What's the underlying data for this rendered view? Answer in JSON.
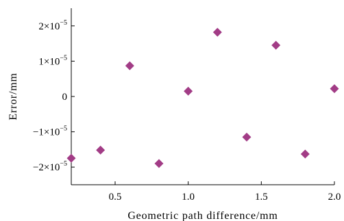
{
  "chart_data": {
    "type": "scatter",
    "xlabel": "Geometric path difference/mm",
    "ylabel": "Error/mm",
    "xlim": [
      0.2,
      2.0
    ],
    "ylim": [
      -2.5e-05,
      2.5e-05
    ],
    "x_ticks": [
      {
        "value": 0.5,
        "label": "0.5"
      },
      {
        "value": 1.0,
        "label": "1.0"
      },
      {
        "value": 1.5,
        "label": "1.5"
      },
      {
        "value": 2.0,
        "label": "2.0"
      }
    ],
    "y_ticks": [
      {
        "value": 2e-05,
        "mantissa": "2×10",
        "exp": "−5"
      },
      {
        "value": 1e-05,
        "mantissa": "1×10",
        "exp": "−5"
      },
      {
        "value": 0,
        "mantissa": "0",
        "exp": ""
      },
      {
        "value": -1e-05,
        "mantissa": "−1×10",
        "exp": "−5"
      },
      {
        "value": -2e-05,
        "mantissa": "−2×10",
        "exp": "−5"
      }
    ],
    "marker": "diamond",
    "marker_color": "#a23c86",
    "grid": false,
    "points": [
      {
        "x": 0.2,
        "y": -1.75e-05
      },
      {
        "x": 0.4,
        "y": -1.52e-05
      },
      {
        "x": 0.6,
        "y": 8.7e-06
      },
      {
        "x": 0.8,
        "y": -1.9e-05
      },
      {
        "x": 1.0,
        "y": 1.5e-06
      },
      {
        "x": 1.2,
        "y": 1.82e-05
      },
      {
        "x": 1.4,
        "y": -1.15e-05
      },
      {
        "x": 1.6,
        "y": 1.45e-05
      },
      {
        "x": 1.8,
        "y": -1.63e-05
      },
      {
        "x": 2.0,
        "y": 2.2e-06
      }
    ]
  }
}
